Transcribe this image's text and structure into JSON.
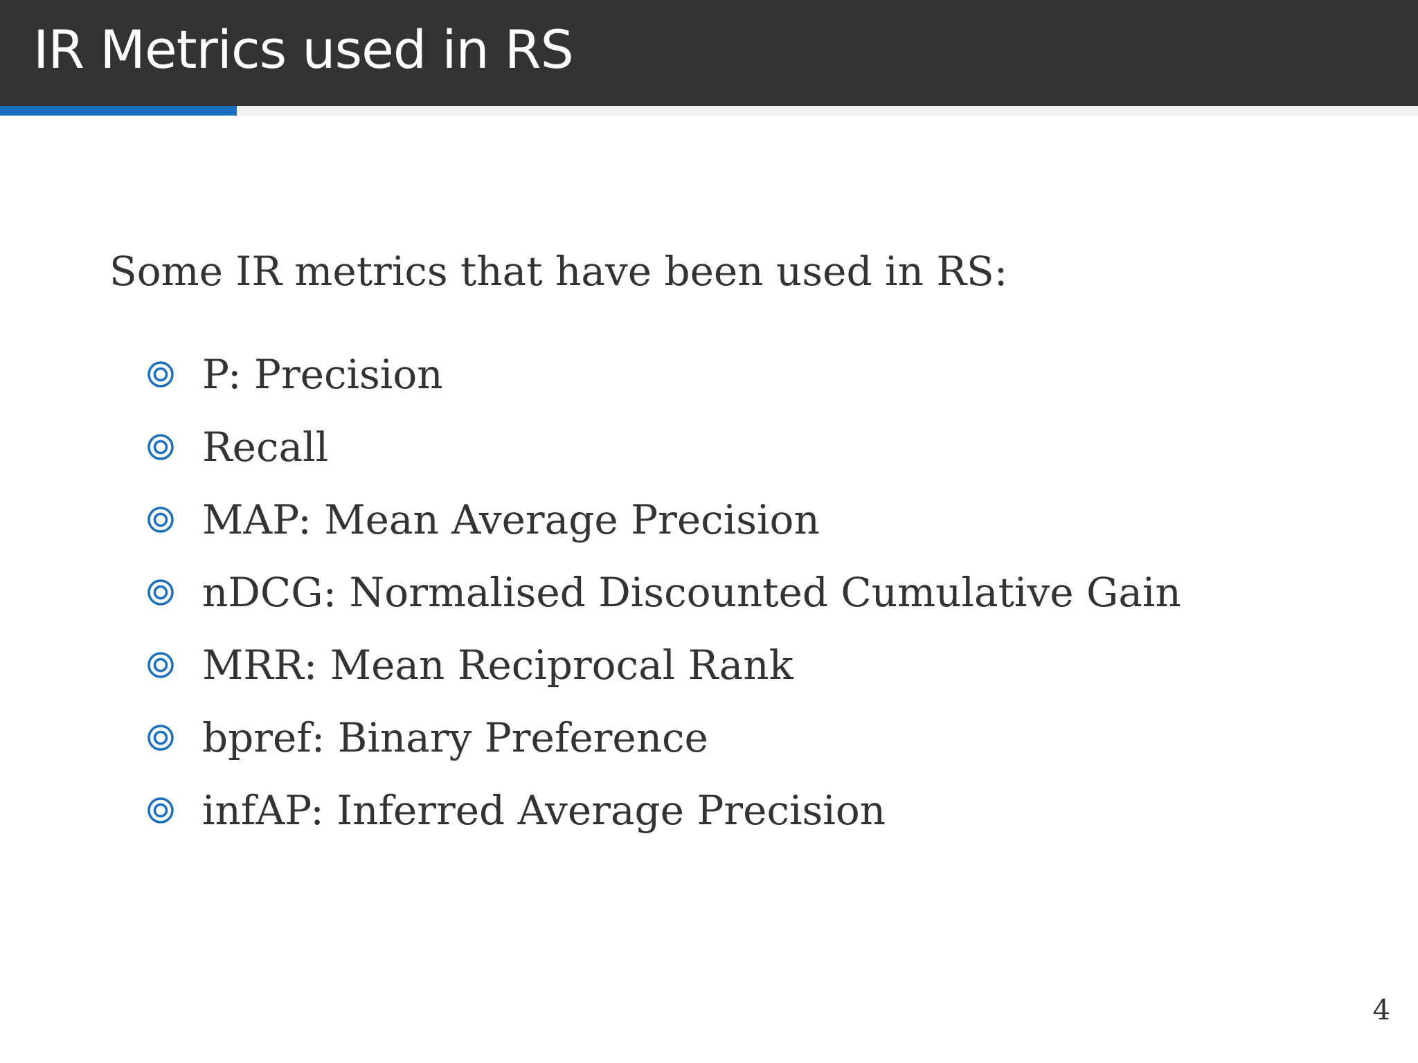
{
  "slide": {
    "title": "IR Metrics used in RS",
    "intro": "Some IR metrics that have been used in RS:",
    "bullet_icon": "double-circle-bullet-icon",
    "items": [
      {
        "label": "P: Precision"
      },
      {
        "label": "Recall"
      },
      {
        "label": "MAP: Mean Average Precision"
      },
      {
        "label": "nDCG: Normalised Discounted Cumulative Gain"
      },
      {
        "label": "MRR: Mean Reciprocal Rank"
      },
      {
        "label": "bpref:  Binary Preference"
      },
      {
        "label": "infAP: Inferred Average Precision"
      }
    ],
    "page_number": "4"
  },
  "progress": {
    "fraction": 0.167
  },
  "colors": {
    "header_background": "#333333",
    "accent": "#1a6fbf",
    "text": "#333333"
  }
}
